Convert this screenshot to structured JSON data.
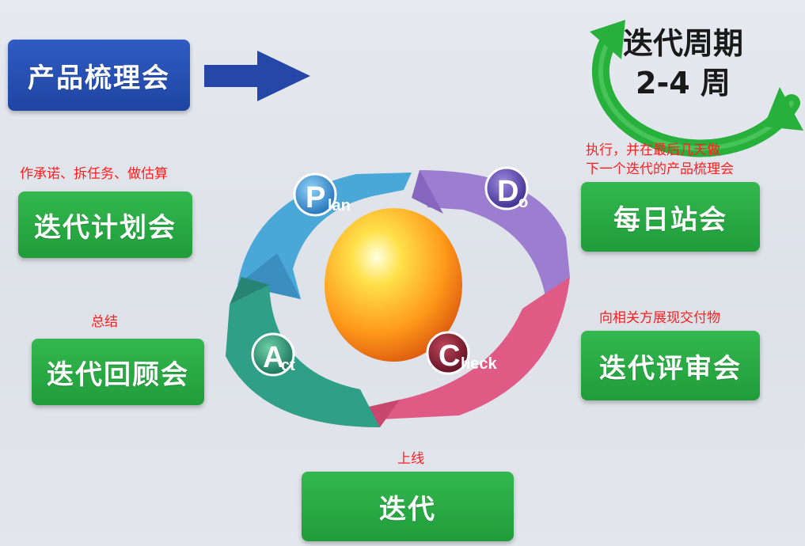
{
  "header": {
    "product_review": "产品梳理会"
  },
  "iteration_cycle": {
    "title_line1": "迭代周期",
    "title_line2": "2-4 周"
  },
  "meetings": {
    "planning": "迭代计划会",
    "retrospective": "迭代回顾会",
    "daily": "每日站会",
    "review": "迭代评审会",
    "iteration": "迭代"
  },
  "notes": {
    "planning_note": "作承诺、拆任务、做估算",
    "retro_note": "总结",
    "daily_note_line1": "执行，并在最后几天做",
    "daily_note_line2": "下一个迭代的产品梳理会",
    "review_note": "向相关方展现交付物",
    "release_note": "上线"
  },
  "pdca": {
    "plan_letter": "P",
    "plan_rest": "lan",
    "do_letter": "D",
    "do_rest": "o",
    "check_letter": "C",
    "check_rest": "heck",
    "act_letter": "A",
    "act_rest": "ct"
  },
  "colors": {
    "plan": "#4aa8d8",
    "do": "#9d7dd0",
    "check": "#e05a86",
    "act": "#2f9f88",
    "green_button": "#27a844",
    "blue_button": "#2a52b3"
  }
}
